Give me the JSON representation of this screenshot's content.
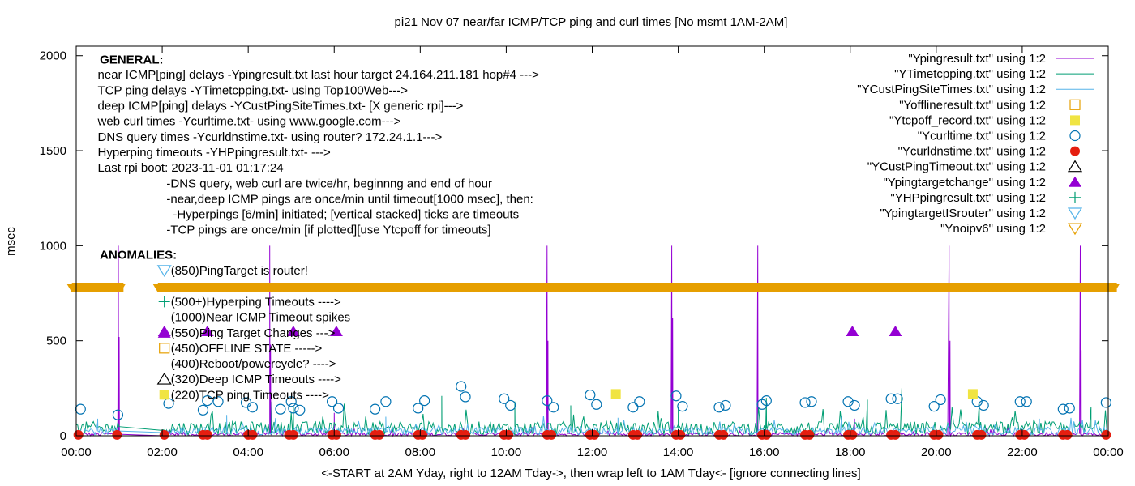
{
  "chart_data": {
    "type": "line",
    "title": "pi21 Nov 07  near/far ICMP/TCP ping and curl times [No msmt 1AM-2AM]",
    "xlabel": "<-START at 2AM Yday, right to 12AM Tday->, then wrap left to 1AM Tday<- [ignore connecting lines]",
    "ylabel": "msec",
    "xlim": [
      0,
      24
    ],
    "ylim": [
      0,
      2050
    ],
    "grid": false,
    "legend_position": "top-right",
    "x_ticks": [
      {
        "v": 0,
        "label": "00:00"
      },
      {
        "v": 2,
        "label": "02:00"
      },
      {
        "v": 4,
        "label": "04:00"
      },
      {
        "v": 6,
        "label": "06:00"
      },
      {
        "v": 8,
        "label": "08:00"
      },
      {
        "v": 10,
        "label": "10:00"
      },
      {
        "v": 12,
        "label": "12:00"
      },
      {
        "v": 14,
        "label": "14:00"
      },
      {
        "v": 16,
        "label": "16:00"
      },
      {
        "v": 18,
        "label": "18:00"
      },
      {
        "v": 20,
        "label": "20:00"
      },
      {
        "v": 22,
        "label": "22:00"
      },
      {
        "v": 24,
        "label": "00:00"
      }
    ],
    "y_ticks": [
      {
        "v": 0,
        "label": "0"
      },
      {
        "v": 500,
        "label": "500"
      },
      {
        "v": 1000,
        "label": "1000"
      },
      {
        "v": 1500,
        "label": "1500"
      },
      {
        "v": 2000,
        "label": "2000"
      }
    ],
    "annotations_general": [
      {
        "text": "GENERAL:",
        "bold": true,
        "x": 0.55,
        "y": 1980
      },
      {
        "text": "near ICMP[ping] delays -Ypingresult.txt last hour target 24.164.211.181 hop#4 --->",
        "x": 0.5,
        "y": 1900
      },
      {
        "text": "TCP ping delays -YTimetcpping.txt- using Top100Web--->",
        "x": 0.5,
        "y": 1818
      },
      {
        "text": "deep ICMP[ping] delays -YCustPingSiteTimes.txt- [X generic rpi]--->",
        "x": 0.5,
        "y": 1736
      },
      {
        "text": "web curl times -Ycurltime.txt- using www.google.com--->",
        "x": 0.5,
        "y": 1655
      },
      {
        "text": "DNS query times -Ycurldnstime.txt- using router? 172.24.1.1--->",
        "x": 0.5,
        "y": 1573
      },
      {
        "text": "Hyperping timeouts -YHPpingresult.txt- --->",
        "x": 0.5,
        "y": 1492
      },
      {
        "text": "Last rpi boot: 2023-11-01 01:17:24",
        "x": 0.5,
        "y": 1410
      },
      {
        "text": "-DNS query, web curl are twice/hr, beginnng and end of hour",
        "x": 2.1,
        "y": 1328
      },
      {
        "text": "-near,deep ICMP pings are once/min until timeout[1000 msec], then:",
        "x": 2.1,
        "y": 1247
      },
      {
        "text": "-Hyperpings [6/min] initiated; [vertical stacked] ticks are timeouts",
        "x": 2.25,
        "y": 1165
      },
      {
        "text": "-TCP pings are once/min [if plotted][use Ytcpoff for timeouts]",
        "x": 2.1,
        "y": 1084
      }
    ],
    "annotations_anomalies": [
      {
        "text": "ANOMALIES:",
        "bold": true,
        "x": 0.55,
        "y": 952
      },
      {
        "text": "(850)PingTarget is router!",
        "marker": "triangle-down-cyan",
        "x": 2.2,
        "y": 870
      },
      {
        "text": "(500+)Hyperping Timeouts ---->",
        "marker": "plus",
        "x": 2.2,
        "y": 706
      },
      {
        "text": "(1000)Near ICMP Timeout spikes",
        "marker": "",
        "x": 2.2,
        "y": 624
      },
      {
        "text": "(550)Ping Target Changes --->",
        "marker": "triangle-up-purple",
        "x": 2.2,
        "y": 542
      },
      {
        "text": "(450)OFFLINE STATE ----->",
        "marker": "square-open",
        "x": 2.2,
        "y": 461
      },
      {
        "text": "(400)Reboot/powercycle? ---->",
        "marker": "",
        "x": 2.2,
        "y": 379
      },
      {
        "text": "(320)Deep ICMP Timeouts ---->",
        "marker": "triangle-up-open",
        "x": 2.2,
        "y": 298
      },
      {
        "text": "(220)TCP ping Timeouts ---->",
        "marker": "square-filled",
        "x": 2.2,
        "y": 216
      }
    ],
    "legend": [
      {
        "name": "\"Ypingresult.txt\" using 1:2",
        "kind": "line",
        "color": "#9400d3"
      },
      {
        "name": "\"YTimetcpping.txt\" using 1:2",
        "kind": "line",
        "color": "#009e73"
      },
      {
        "name": "\"YCustPingSiteTimes.txt\" using 1:2",
        "kind": "line",
        "color": "#56b4e9"
      },
      {
        "name": "\"Yofflineresult.txt\" using 1:2",
        "kind": "square-open",
        "color": "#e69f00"
      },
      {
        "name": "\"Ytcpoff_record.txt\" using 1:2",
        "kind": "square-filled",
        "color": "#f0e442"
      },
      {
        "name": "\"Ycurltime.txt\" using 1:2",
        "kind": "circle-open",
        "color": "#0072b2"
      },
      {
        "name": "\"Ycurldnstime.txt\" using 1:2",
        "kind": "circle-filled",
        "color": "#e51e10"
      },
      {
        "name": "\"YCustPingTimeout.txt\" using 1:2",
        "kind": "triangle-up-open",
        "color": "#000000"
      },
      {
        "name": "\"Ypingtargetchange\" using 1:2",
        "kind": "triangle-up-filled",
        "color": "#9400d3"
      },
      {
        "name": "\"YHPpingresult.txt\" using 1:2",
        "kind": "plus",
        "color": "#009e73"
      },
      {
        "name": "\"YpingtargetISrouter\" using 1:2",
        "kind": "triangle-down-open",
        "color": "#56b4e9"
      },
      {
        "name": "\"Ynoipv6\" using 1:2",
        "kind": "triangle-down-open",
        "color": "#e69f00"
      }
    ],
    "series": [
      {
        "name": "\"Ypingresult.txt\" using 1:2",
        "kind": "line",
        "color": "#9400d3",
        "baseline": 8,
        "noise": 10,
        "spikes": [
          [
            0.98,
            1000
          ],
          [
            1.0,
            520
          ],
          [
            4.5,
            1000
          ],
          [
            4.52,
            480
          ],
          [
            10.95,
            1000
          ],
          [
            10.97,
            500
          ],
          [
            13.85,
            1000
          ],
          [
            13.87,
            620
          ],
          [
            15.85,
            1000
          ],
          [
            20.3,
            1000
          ],
          [
            20.32,
            500
          ],
          [
            23.35,
            1000
          ],
          [
            23.37,
            450
          ],
          [
            6.0,
            120
          ],
          [
            18.1,
            90
          ]
        ]
      },
      {
        "name": "\"YTimetcpping.txt\" using 1:2",
        "kind": "line",
        "color": "#009e73",
        "baseline": 40,
        "noise": 35,
        "spikes": [
          [
            4.55,
            180
          ],
          [
            5.05,
            160
          ],
          [
            8.5,
            210
          ],
          [
            10.2,
            180
          ],
          [
            11.5,
            160
          ],
          [
            14.0,
            150
          ],
          [
            16.05,
            200
          ],
          [
            18.4,
            190
          ],
          [
            19.2,
            250
          ],
          [
            21.0,
            170
          ],
          [
            23.6,
            150
          ]
        ]
      },
      {
        "name": "\"YCustPingSiteTimes.txt\" using 1:2",
        "kind": "line",
        "color": "#56b4e9",
        "baseline": 25,
        "noise": 20,
        "spikes": [
          [
            0.5,
            90
          ],
          [
            3.5,
            110
          ],
          [
            7.2,
            100
          ],
          [
            12.6,
            95
          ],
          [
            17.8,
            105
          ],
          [
            22.4,
            90
          ]
        ]
      }
    ],
    "offline_points": [],
    "tcp_timeout_points": [
      [
        12.55,
        220
      ],
      [
        20.85,
        220
      ]
    ],
    "curl_points": [
      [
        0.1,
        140
      ],
      [
        0.97,
        110
      ],
      [
        2.15,
        170
      ],
      [
        2.95,
        135
      ],
      [
        3.05,
        185
      ],
      [
        3.3,
        180
      ],
      [
        3.95,
        175
      ],
      [
        4.1,
        150
      ],
      [
        4.75,
        140
      ],
      [
        5.0,
        180
      ],
      [
        5.05,
        145
      ],
      [
        5.2,
        135
      ],
      [
        5.95,
        180
      ],
      [
        6.1,
        145
      ],
      [
        6.95,
        140
      ],
      [
        7.2,
        180
      ],
      [
        7.95,
        145
      ],
      [
        8.1,
        185
      ],
      [
        8.95,
        260
      ],
      [
        9.05,
        205
      ],
      [
        9.95,
        195
      ],
      [
        10.1,
        160
      ],
      [
        10.95,
        185
      ],
      [
        11.1,
        150
      ],
      [
        11.95,
        215
      ],
      [
        12.1,
        165
      ],
      [
        12.95,
        150
      ],
      [
        13.1,
        180
      ],
      [
        13.95,
        210
      ],
      [
        14.1,
        155
      ],
      [
        14.95,
        150
      ],
      [
        15.1,
        160
      ],
      [
        15.95,
        165
      ],
      [
        16.05,
        185
      ],
      [
        16.95,
        175
      ],
      [
        17.1,
        180
      ],
      [
        17.95,
        180
      ],
      [
        18.1,
        160
      ],
      [
        18.95,
        195
      ],
      [
        19.1,
        195
      ],
      [
        19.95,
        155
      ],
      [
        20.1,
        190
      ],
      [
        20.95,
        180
      ],
      [
        21.1,
        160
      ],
      [
        21.95,
        180
      ],
      [
        22.1,
        180
      ],
      [
        22.95,
        140
      ],
      [
        23.1,
        145
      ],
      [
        23.95,
        175
      ]
    ],
    "dns_points": [
      [
        0.05,
        5
      ],
      [
        0.95,
        5
      ],
      [
        2.05,
        5
      ],
      [
        2.95,
        5
      ],
      [
        3.05,
        5
      ],
      [
        4.0,
        5
      ],
      [
        4.1,
        5
      ],
      [
        4.95,
        5
      ],
      [
        5.05,
        5
      ],
      [
        5.95,
        5
      ],
      [
        6.05,
        5
      ],
      [
        6.95,
        5
      ],
      [
        7.05,
        5
      ],
      [
        7.95,
        5
      ],
      [
        8.05,
        5
      ],
      [
        8.95,
        5
      ],
      [
        9.05,
        5
      ],
      [
        9.95,
        5
      ],
      [
        10.05,
        5
      ],
      [
        10.95,
        5
      ],
      [
        11.05,
        5
      ],
      [
        11.95,
        5
      ],
      [
        12.05,
        5
      ],
      [
        12.95,
        5
      ],
      [
        13.05,
        5
      ],
      [
        13.95,
        5
      ],
      [
        14.05,
        5
      ],
      [
        14.95,
        5
      ],
      [
        15.05,
        5
      ],
      [
        15.95,
        5
      ],
      [
        16.05,
        5
      ],
      [
        16.95,
        5
      ],
      [
        17.05,
        5
      ],
      [
        17.95,
        5
      ],
      [
        18.05,
        5
      ],
      [
        18.95,
        5
      ],
      [
        19.05,
        5
      ],
      [
        19.95,
        5
      ],
      [
        20.05,
        5
      ],
      [
        20.95,
        5
      ],
      [
        21.05,
        5
      ],
      [
        21.95,
        5
      ],
      [
        22.05,
        5
      ],
      [
        22.95,
        5
      ],
      [
        23.05,
        5
      ],
      [
        23.95,
        5
      ]
    ],
    "target_change_points": [
      [
        2.05,
        550
      ],
      [
        3.05,
        550
      ],
      [
        5.05,
        550
      ],
      [
        6.05,
        550
      ],
      [
        18.05,
        550
      ],
      [
        19.05,
        550
      ]
    ],
    "noipv6_band": {
      "y": 780,
      "segments": [
        [
          -0.1,
          1.1
        ],
        [
          1.9,
          24.2
        ]
      ]
    },
    "colors": {
      "axis": "#000000",
      "text": "#000000",
      "band": "#e69f00"
    }
  }
}
